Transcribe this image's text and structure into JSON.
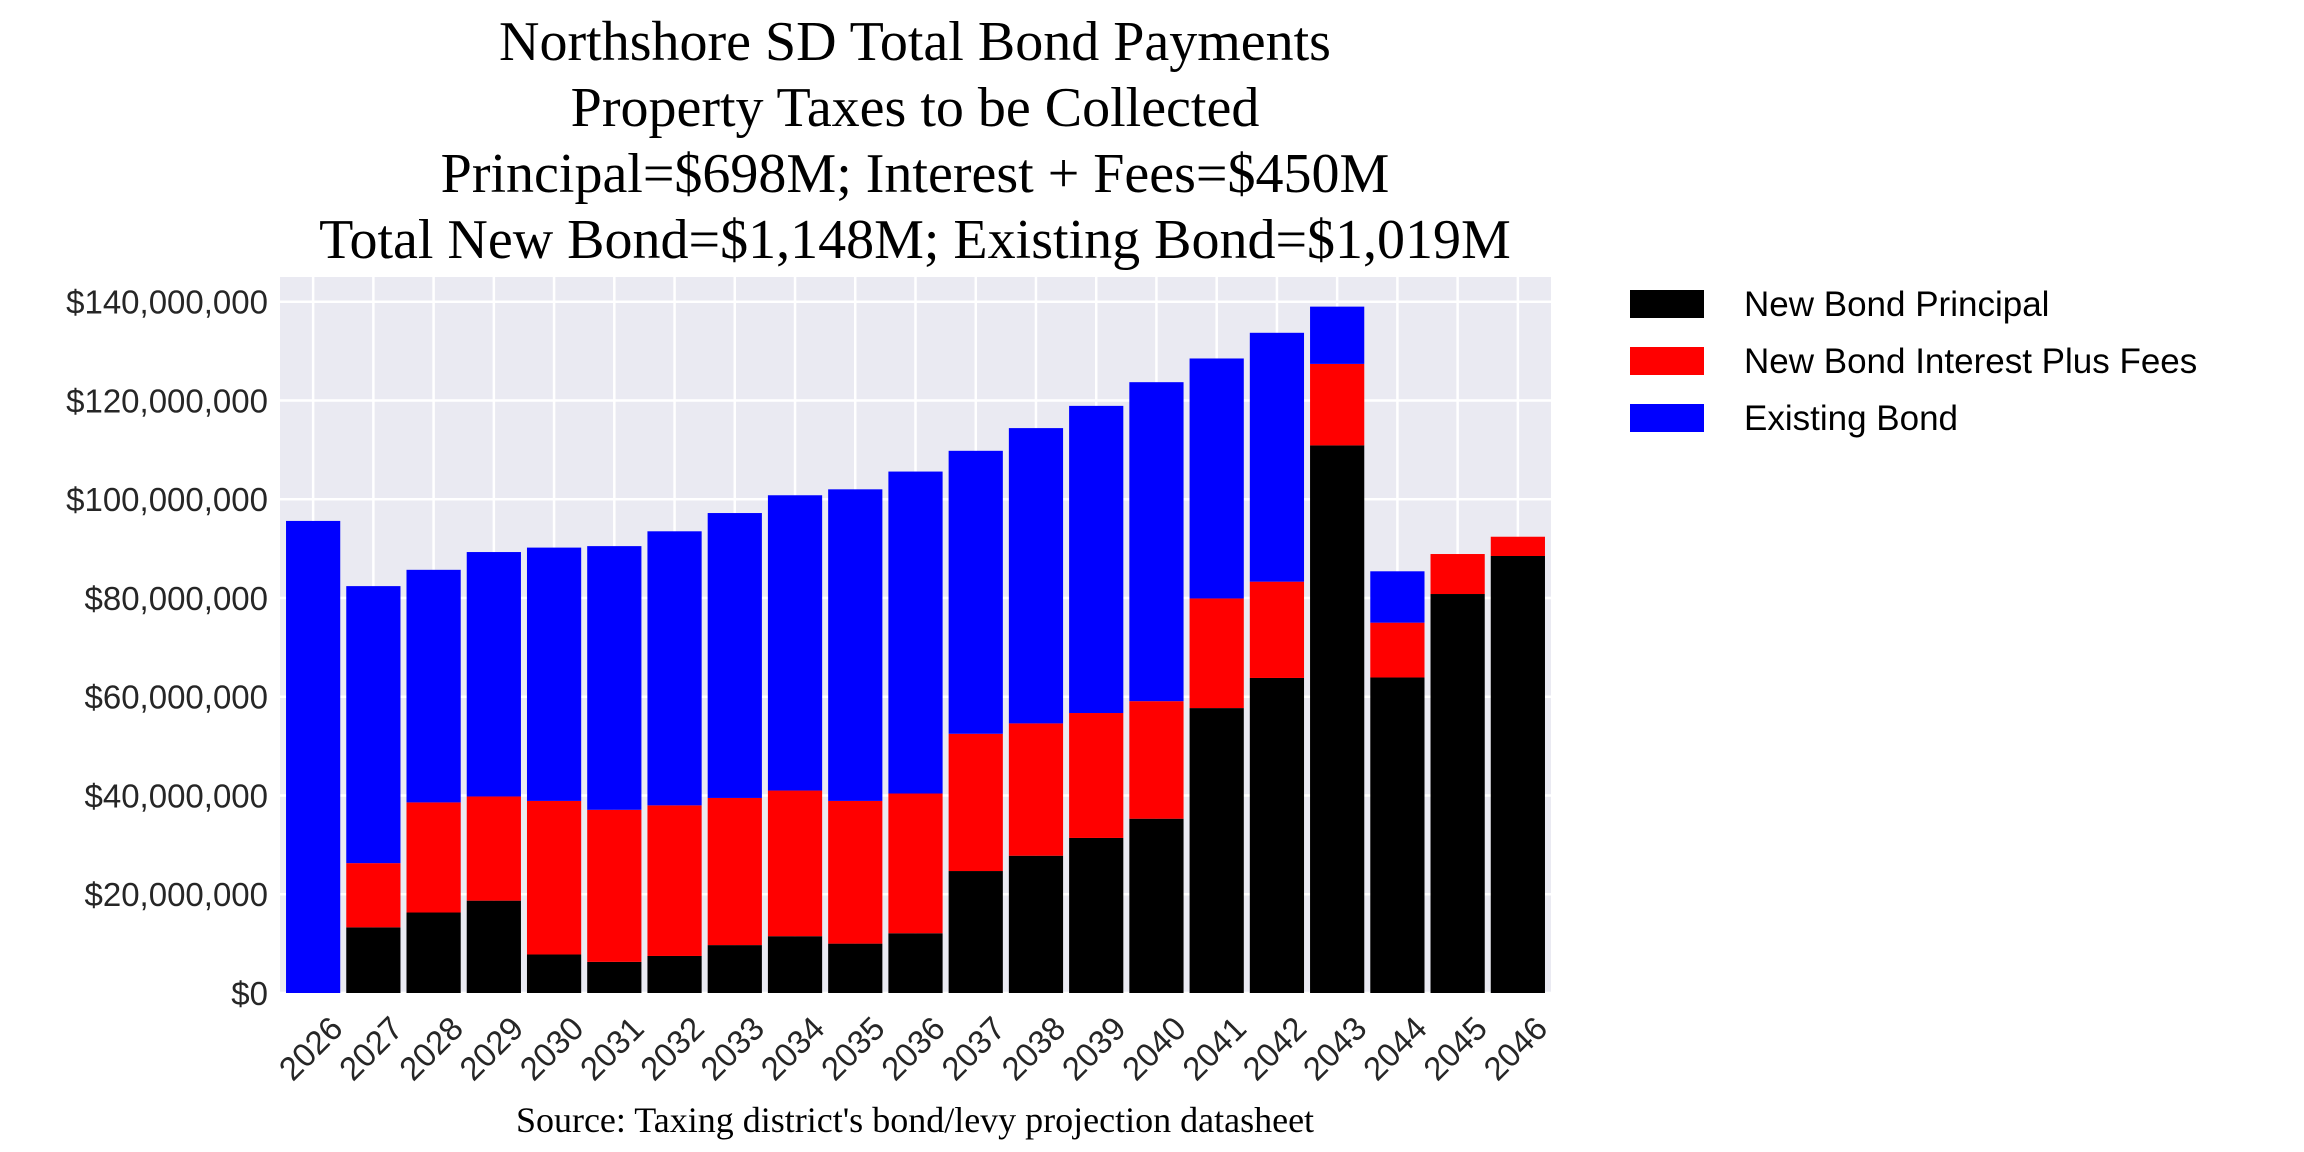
{
  "chart_data": {
    "type": "bar",
    "stacked": true,
    "title": [
      "Northshore SD Total Bond Payments",
      "Property Taxes to be Collected",
      "Principal=$698M; Interest + Fees=$450M",
      "Total New Bond=$1,148M; Existing Bond=$1,019M"
    ],
    "xlabel": "Source: Taxing district's bond/levy projection datasheet",
    "ylabel": "",
    "ylim": [
      0,
      145000000
    ],
    "yticks": [
      0,
      20000000,
      40000000,
      60000000,
      80000000,
      100000000,
      120000000,
      140000000
    ],
    "ytick_labels": [
      "$0",
      "$20,000,000",
      "$40,000,000",
      "$60,000,000",
      "$80,000,000",
      "$100,000,000",
      "$120,000,000",
      "$140,000,000"
    ],
    "grid": true,
    "background": "#eaeaf2",
    "legend_position": "outside-top-right",
    "categories": [
      "2026",
      "2027",
      "2028",
      "2029",
      "2030",
      "2031",
      "2032",
      "2033",
      "2034",
      "2035",
      "2036",
      "2037",
      "2038",
      "2039",
      "2040",
      "2041",
      "2042",
      "2043",
      "2044",
      "2045",
      "2046"
    ],
    "series": [
      {
        "name": "New Bond Principal",
        "color": "#000000",
        "values": [
          0,
          13300000,
          16300000,
          18700000,
          7800000,
          6300000,
          7500000,
          9700000,
          11500000,
          10000000,
          12100000,
          24700000,
          27800000,
          31400000,
          35300000,
          57700000,
          63800000,
          110900000,
          63900000,
          80800000,
          88500000
        ]
      },
      {
        "name": "New Bond Interest Plus Fees",
        "color": "#ff0000",
        "values": [
          0,
          13000000,
          22300000,
          21100000,
          31100000,
          30800000,
          30500000,
          29800000,
          29500000,
          28900000,
          28300000,
          27800000,
          26800000,
          25300000,
          23800000,
          22200000,
          19500000,
          16500000,
          11100000,
          8100000,
          3900000
        ]
      },
      {
        "name": "Existing Bond",
        "color": "#0000ff",
        "values": [
          95600000,
          56100000,
          47100000,
          49500000,
          51300000,
          53400000,
          55500000,
          57700000,
          59800000,
          63100000,
          65200000,
          57300000,
          59800000,
          62200000,
          64600000,
          48600000,
          50400000,
          11600000,
          10400000,
          0,
          0
        ]
      }
    ]
  }
}
